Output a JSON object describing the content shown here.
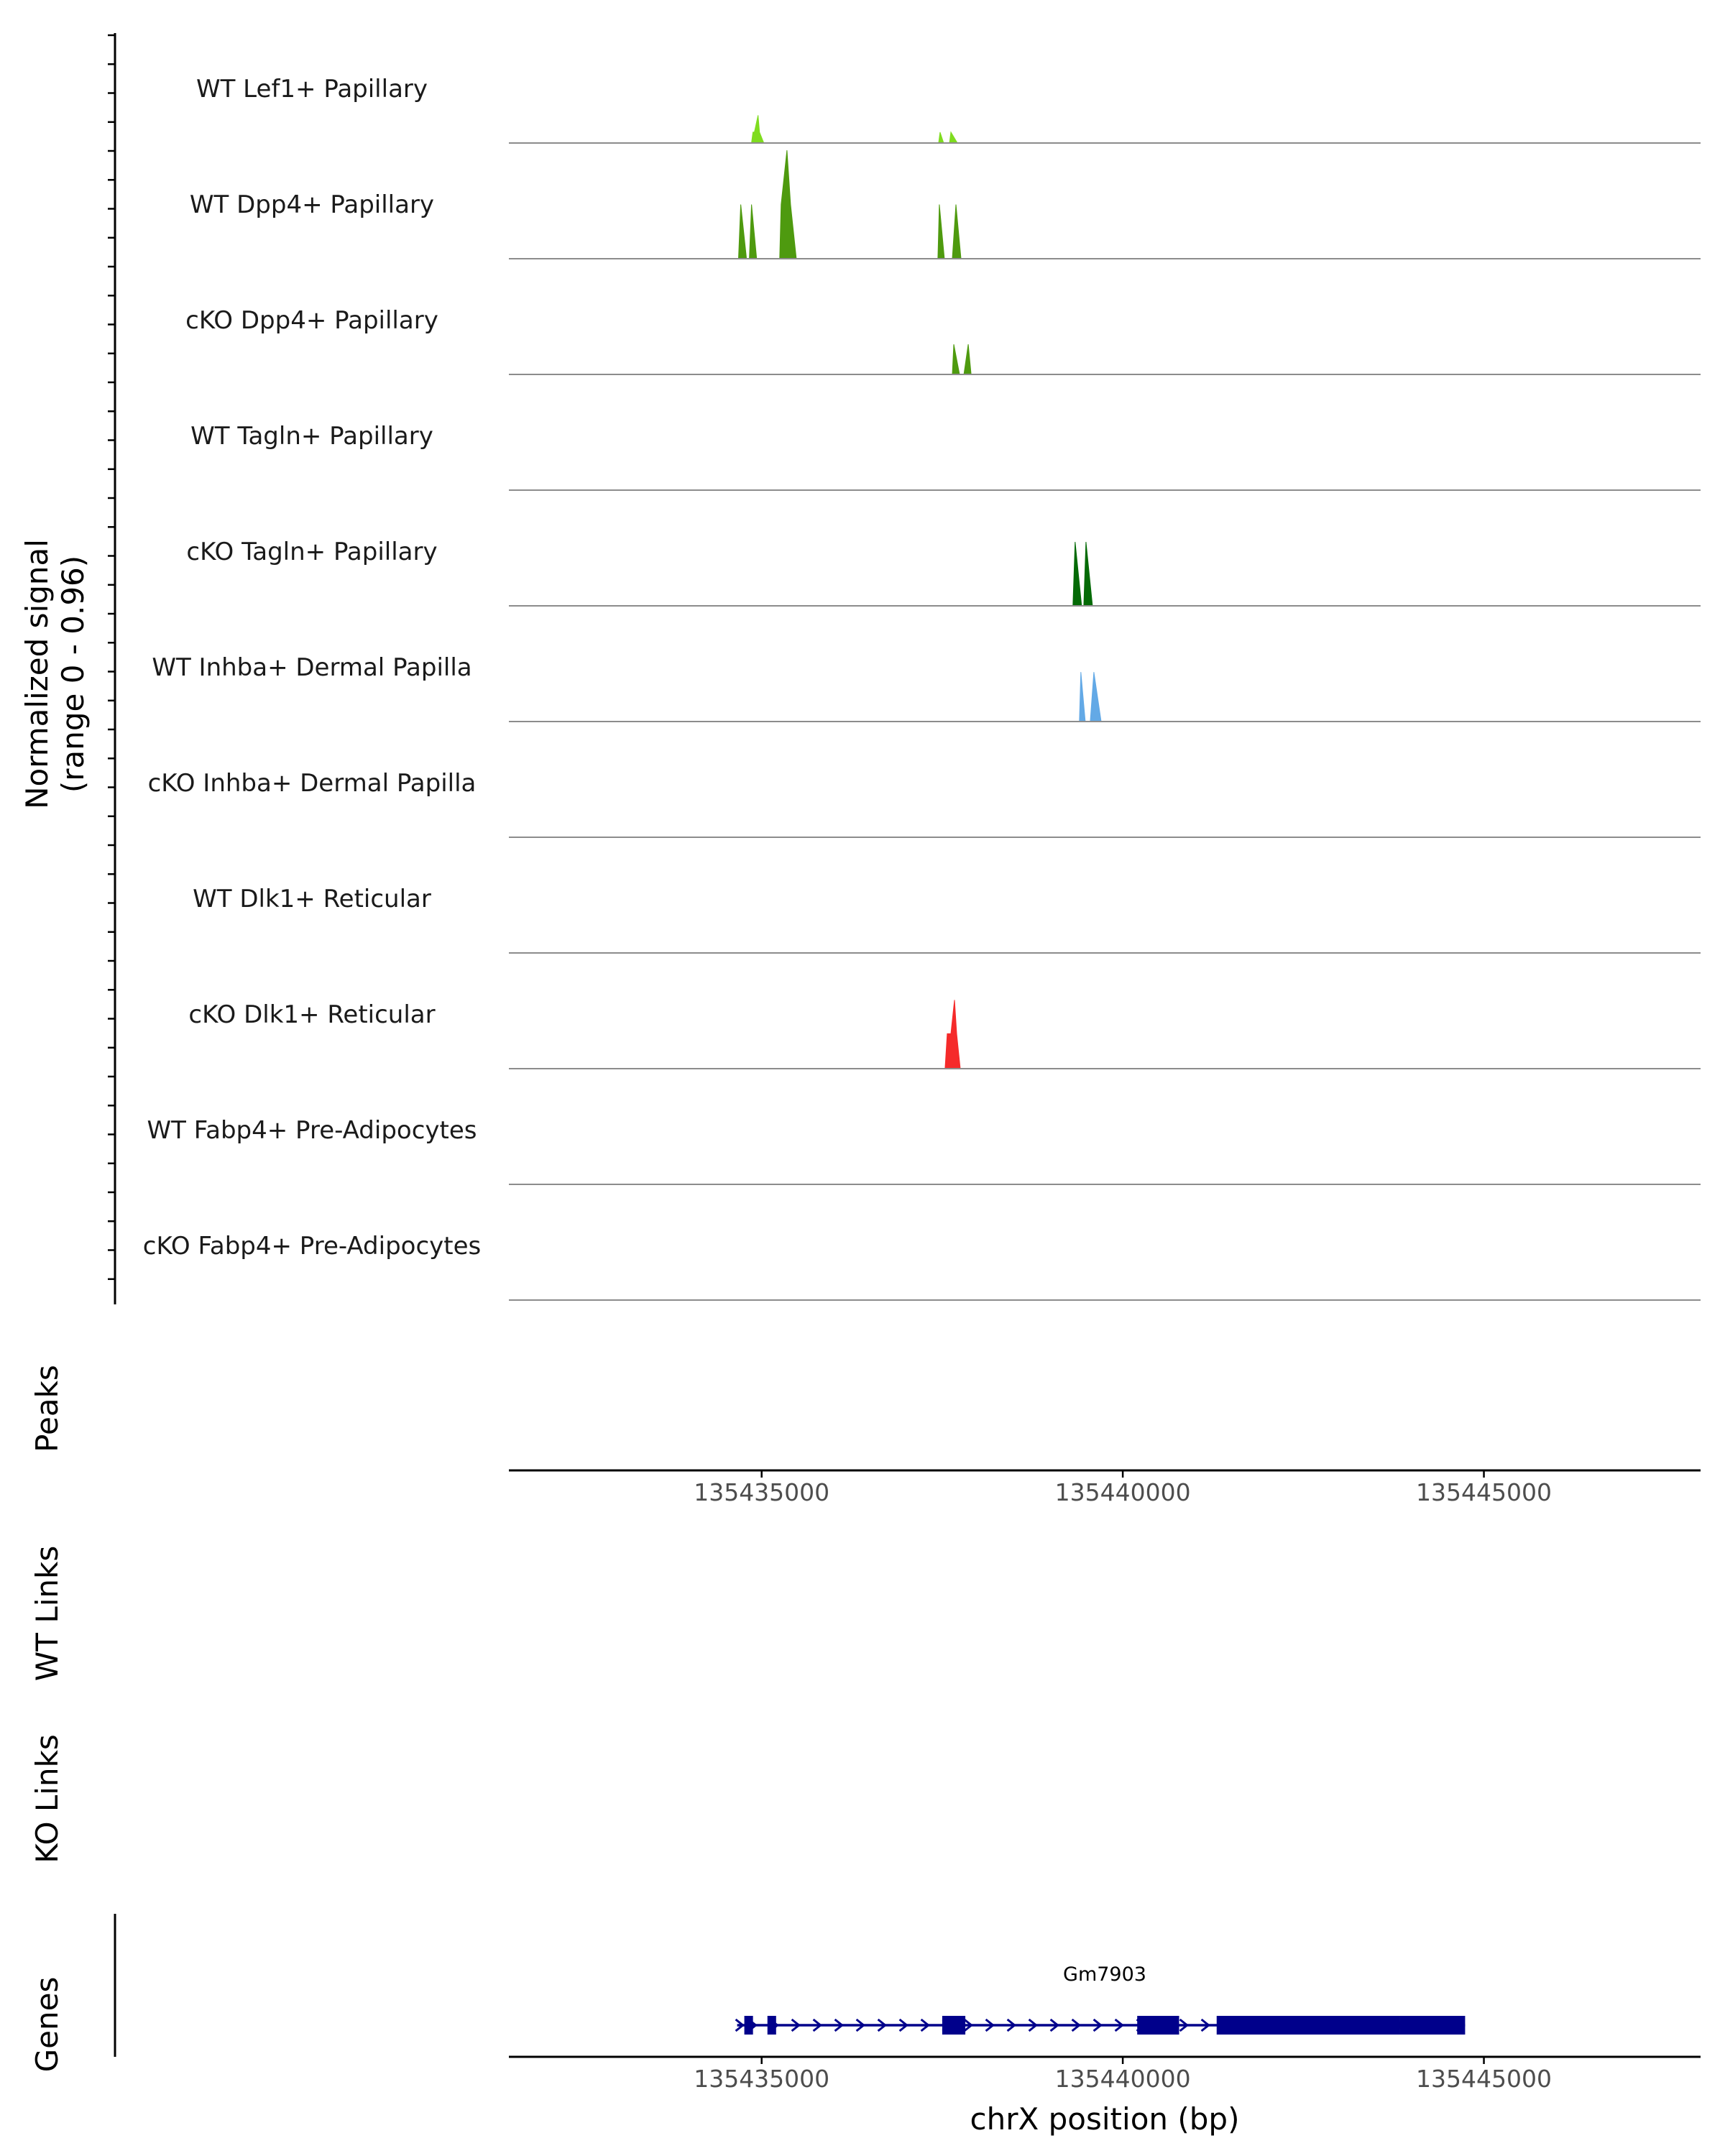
{
  "chart_data": {
    "type": "coverage-track",
    "chromosome": "chrX",
    "xlabel": "chrX position (bp)",
    "xlim": [
      135431500,
      135448000
    ],
    "x_ticks": [
      135435000,
      135440000,
      135445000
    ],
    "x_tick_labels": [
      "135435000",
      "135440000",
      "135445000"
    ],
    "ylabel_line1": "Normalized signal",
    "ylabel_line2": "(range 0 - 0.96)",
    "ylim": [
      0,
      0.96
    ],
    "tracks": [
      {
        "name": "WT Lef1+ Papillary",
        "color": "#7FDC1F",
        "segments": [
          {
            "x": [
              134860,
              134880,
              134900,
              134950,
              134970,
              135030
            ],
            "y": [
              0,
              0.09,
              0.09,
              0.23,
              0.09,
              0
            ]
          },
          {
            "x": [
              137450,
              137470,
              137520,
              137600,
              137620,
              137710
            ],
            "y": [
              0,
              0.09,
              0,
              0,
              0.09,
              0
            ]
          }
        ]
      },
      {
        "name": "WT Dpp4+ Papillary",
        "color": "#4E9A0F",
        "segments": [
          {
            "x": [
              134680,
              134710,
              134790,
              134830,
              134860,
              134930
            ],
            "y": [
              0,
              0.45,
              0,
              0,
              0.45,
              0
            ]
          },
          {
            "x": [
              135250,
              135270,
              135350,
              135400,
              135480
            ],
            "y": [
              0,
              0.45,
              0.9,
              0.45,
              0
            ]
          },
          {
            "x": [
              137440,
              137460,
              137530,
              137640,
              137690,
              137760
            ],
            "y": [
              0,
              0.45,
              0,
              0,
              0.45,
              0
            ]
          }
        ]
      },
      {
        "name": "cKO Dpp4+ Papillary",
        "color": "#4E9A0F",
        "segments": [
          {
            "x": [
              137640,
              137660,
              137740,
              137800,
              137860,
              137900
            ],
            "y": [
              0,
              0.25,
              0,
              0,
              0.25,
              0
            ]
          }
        ]
      },
      {
        "name": "WT Tagln+ Papillary",
        "color": "#1a6e0a",
        "segments": []
      },
      {
        "name": "cKO Tagln+ Papillary",
        "color": "#046A06",
        "segments": [
          {
            "x": [
              139310,
              139340,
              139430,
              139460,
              139490,
              139580
            ],
            "y": [
              0,
              0.53,
              0,
              0,
              0.53,
              0
            ]
          }
        ]
      },
      {
        "name": "WT Inhba+ Dermal Papilla",
        "color": "#63A9E6",
        "segments": [
          {
            "x": [
              139400,
              139420,
              139480,
              139550,
              139600,
              139700
            ],
            "y": [
              0,
              0.41,
              0,
              0,
              0.41,
              0
            ]
          }
        ]
      },
      {
        "name": "cKO Inhba+ Dermal Papilla",
        "color": "#7B3FA0",
        "segments": []
      },
      {
        "name": "WT Dlk1+ Reticular",
        "color": "#c0392b",
        "segments": []
      },
      {
        "name": "cKO Dlk1+ Reticular",
        "color": "#F52A2A",
        "segments": [
          {
            "x": [
              137540,
              137570,
              137620,
              137670,
              137700,
              137750
            ],
            "y": [
              0,
              0.29,
              0.29,
              0.57,
              0.29,
              0
            ]
          }
        ]
      },
      {
        "name": "WT Fabp4+ Pre-Adipocytes",
        "color": "#e08a1e",
        "segments": []
      },
      {
        "name": "cKO Fabp4+ Pre-Adipocytes",
        "color": "#b06010",
        "segments": []
      }
    ],
    "panels": {
      "peaks": "Peaks",
      "wt_links": "WT Links",
      "ko_links": "KO Links",
      "genes": "Genes"
    },
    "gene": {
      "name": "Gm7903",
      "color": "#00008B",
      "strand": "+",
      "start": 134760,
      "end": 144740,
      "exons": [
        [
          134760,
          134880
        ],
        [
          135080,
          135200
        ],
        [
          137500,
          137820
        ],
        [
          140200,
          140780
        ],
        [
          141300,
          143840
        ],
        [
          143840,
          144740
        ]
      ]
    }
  }
}
